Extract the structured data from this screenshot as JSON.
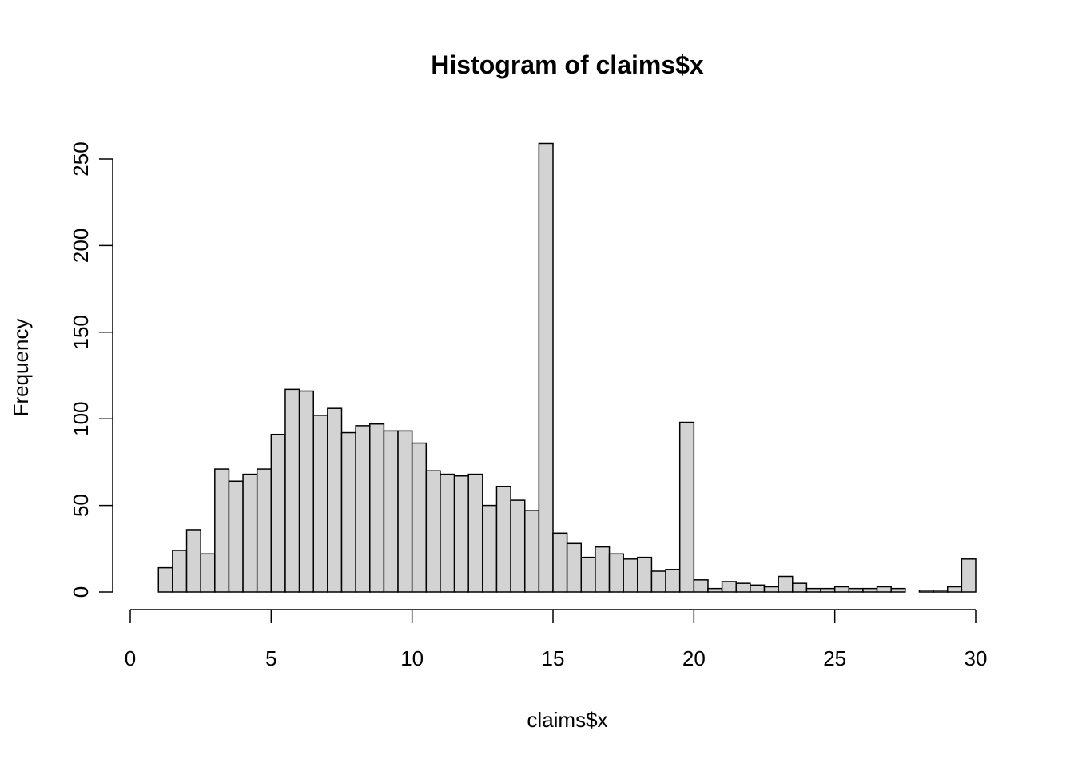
{
  "chart_data": {
    "type": "histogram",
    "title": "Histogram of claims$x",
    "x_label": "claims$x",
    "y_label": "Frequency",
    "bins": [
      1,
      1.5,
      2,
      2.5,
      3,
      3.5,
      4,
      4.5,
      5,
      5.5,
      6,
      6.5,
      7,
      7.5,
      8,
      8.5,
      9,
      9.5,
      10,
      10.5,
      11,
      11.5,
      12,
      12.5,
      13,
      13.5,
      14,
      14.5,
      15,
      15.5,
      16,
      16.5,
      17,
      17.5,
      18,
      18.5,
      19,
      19.5,
      20,
      20.5,
      21,
      21.5,
      22,
      22.5,
      23,
      23.5,
      24,
      24.5,
      25,
      25.5,
      26,
      26.5,
      27,
      27.5,
      28,
      28.5,
      29,
      29.5,
      30
    ],
    "values": [
      14,
      24,
      36,
      22,
      71,
      64,
      68,
      71,
      91,
      117,
      116,
      102,
      106,
      92,
      96,
      97,
      93,
      93,
      86,
      70,
      68,
      67,
      68,
      50,
      61,
      53,
      47,
      259,
      34,
      28,
      20,
      26,
      22,
      19,
      20,
      12,
      13,
      98,
      7,
      2,
      6,
      5,
      4,
      3,
      9,
      5,
      2,
      2,
      3,
      2,
      2,
      3,
      2,
      0,
      1,
      1,
      3,
      19
    ],
    "color": "#d3d3d3",
    "xlim": [
      0,
      30
    ],
    "ylim": [
      0,
      250
    ],
    "xticks": [
      0,
      5,
      10,
      15,
      20,
      25,
      30
    ],
    "yticks": [
      0,
      50,
      100,
      150,
      200,
      250
    ]
  }
}
